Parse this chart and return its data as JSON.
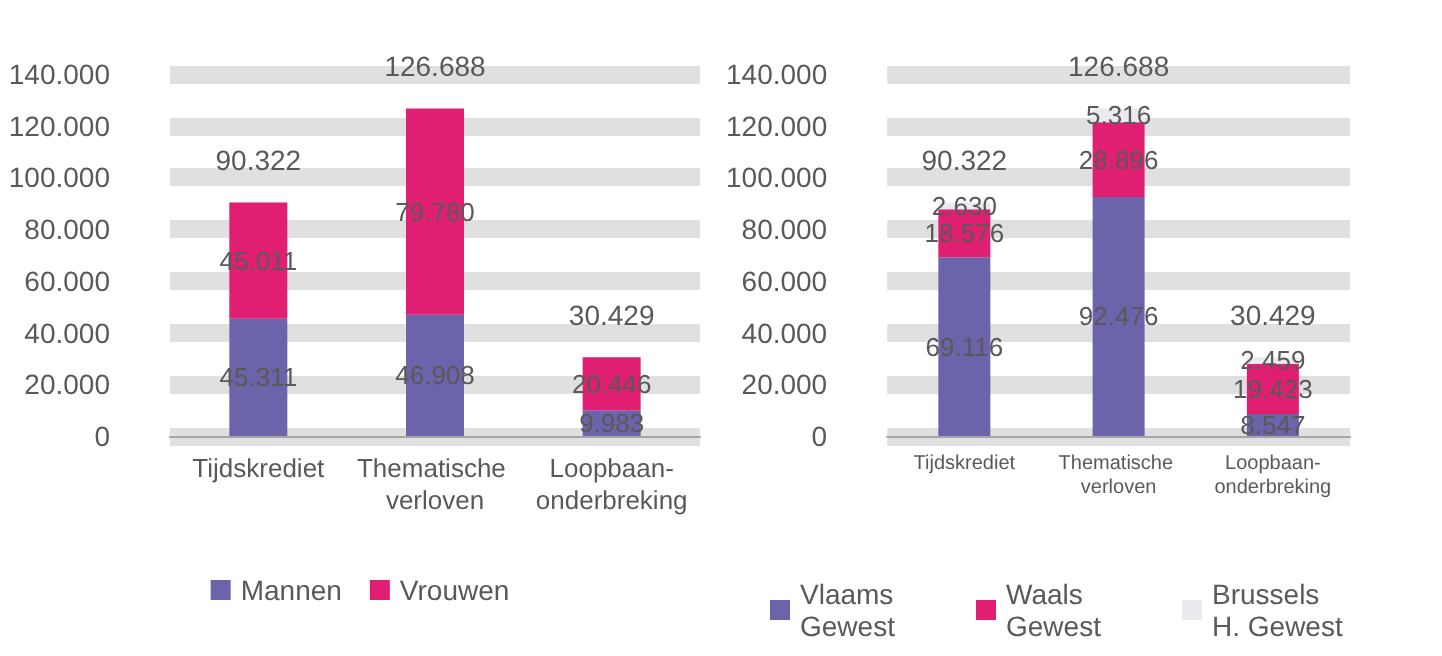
{
  "chart_data": [
    {
      "type": "bar",
      "stacked": true,
      "categories": [
        "Tijdskrediet",
        "Thematische verloven",
        "Loopbaan-onderbreking"
      ],
      "series": [
        {
          "name": "Mannen",
          "color": "#6b64ab",
          "values": [
            45311,
            46908,
            9983
          ],
          "value_labels": [
            "45.311",
            "46.908",
            "9.983"
          ]
        },
        {
          "name": "Vrouwen",
          "color": "#e01f73",
          "values": [
            45011,
            79780,
            20446
          ],
          "value_labels": [
            "45.011",
            "79.780",
            "20.446"
          ]
        }
      ],
      "totals": [
        "90.322",
        "126.688",
        "30.429"
      ],
      "ylim": [
        0,
        140000
      ],
      "yticks": [
        {
          "value": 0,
          "label": "0"
        },
        {
          "value": 20000,
          "label": "20.000"
        },
        {
          "value": 40000,
          "label": "40.000"
        },
        {
          "value": 60000,
          "label": "60.000"
        },
        {
          "value": 80000,
          "label": "80.000"
        },
        {
          "value": 100000,
          "label": "100.000"
        },
        {
          "value": 120000,
          "label": "120.000"
        },
        {
          "value": 140000,
          "label": "140.000"
        }
      ],
      "grid": "y",
      "legend": "bottom"
    },
    {
      "type": "bar",
      "stacked": true,
      "categories": [
        "Tijdskrediet",
        "Thematische verloven",
        "Loopbaan-onderbreking"
      ],
      "series": [
        {
          "name": "Vlaams Gewest",
          "color": "#6b64ab",
          "values": [
            69116,
            92476,
            8547
          ],
          "value_labels": [
            "69.116",
            "92.476",
            "8.547"
          ]
        },
        {
          "name": "Waals Gewest",
          "color": "#e01f73",
          "values": [
            18576,
            28896,
            19423
          ],
          "value_labels": [
            "18.576",
            "28.896",
            "19.423"
          ]
        },
        {
          "name": "Brussels H. Gewest",
          "color": "#ebebef",
          "values": [
            2630,
            5316,
            2459
          ],
          "value_labels": [
            "2.630",
            "5.316",
            "2.459"
          ]
        }
      ],
      "totals": [
        "90.322",
        "126.688",
        "30.429"
      ],
      "ylim": [
        0,
        140000
      ],
      "yticks": [
        {
          "value": 0,
          "label": "0"
        },
        {
          "value": 20000,
          "label": "20.000"
        },
        {
          "value": 40000,
          "label": "40.000"
        },
        {
          "value": 60000,
          "label": "60.000"
        },
        {
          "value": 80000,
          "label": "80.000"
        },
        {
          "value": 100000,
          "label": "100.000"
        },
        {
          "value": 120000,
          "label": "120.000"
        },
        {
          "value": 140000,
          "label": "140.000"
        }
      ],
      "grid": "y",
      "legend": "bottom"
    }
  ]
}
